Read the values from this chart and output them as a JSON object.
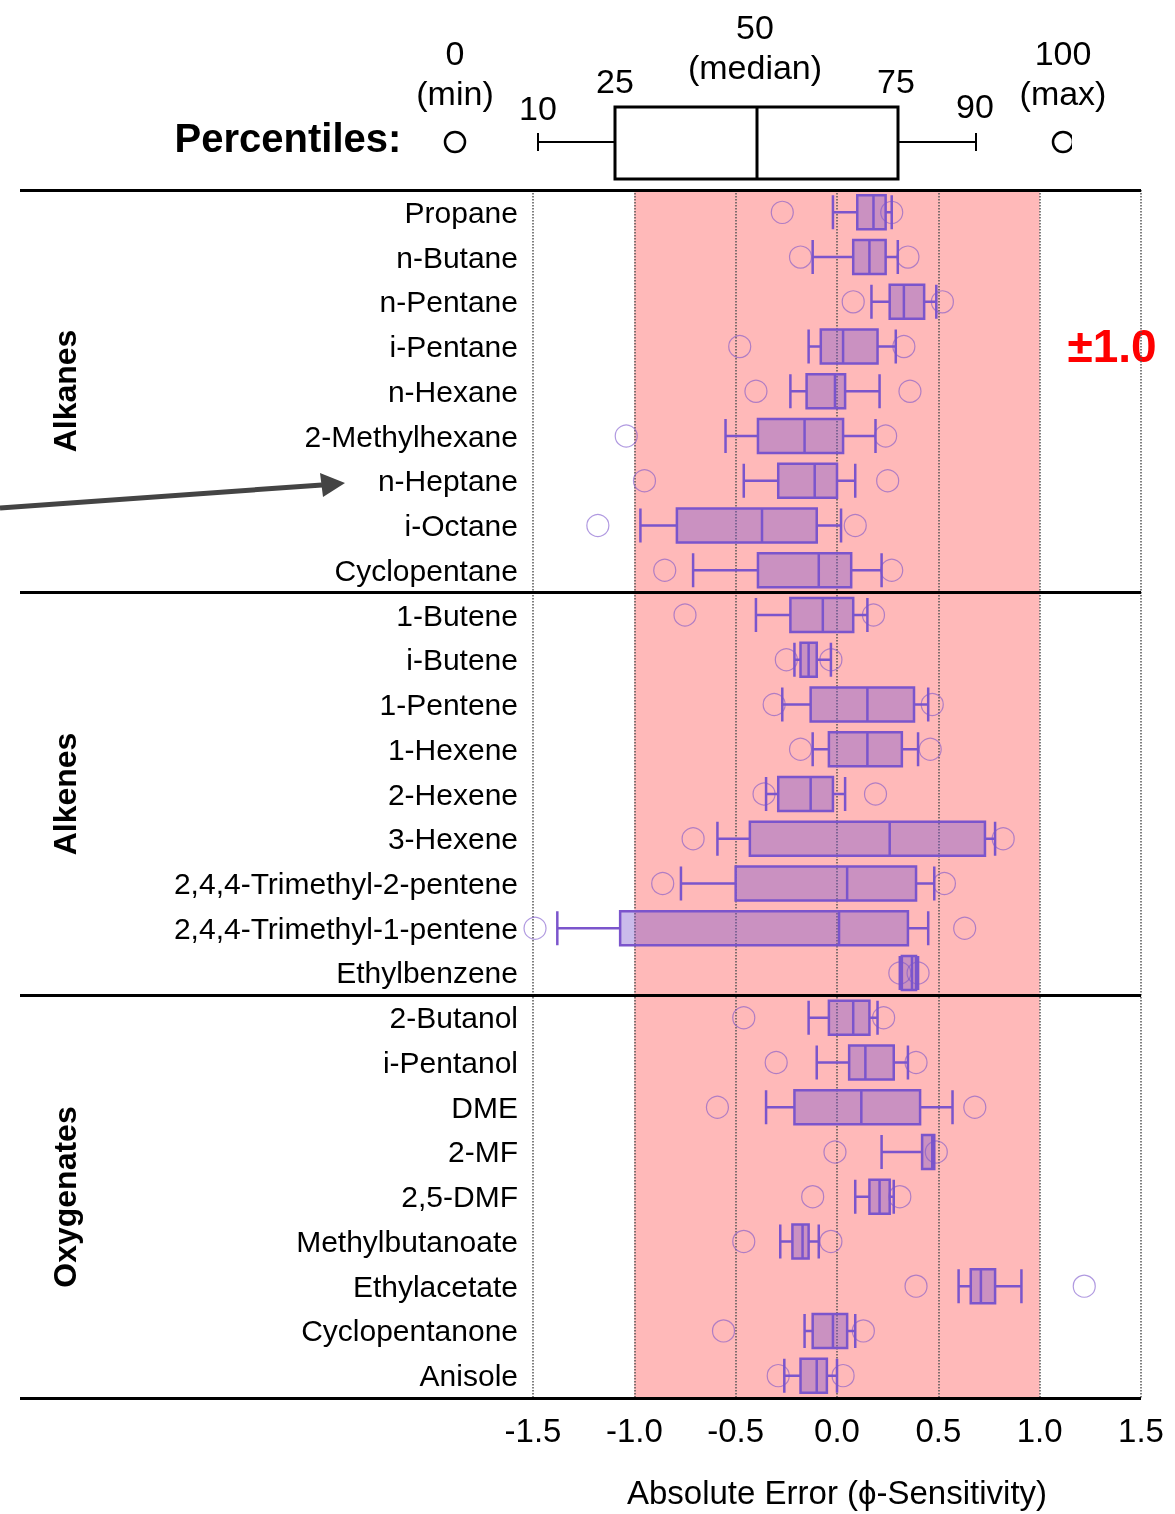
{
  "chart_data": {
    "type": "box",
    "orientation": "horizontal",
    "xlabel": "Absolute Error (ϕ-Sensitivity)",
    "categories": [
      "Propane",
      "n-Butane",
      "n-Pentane",
      "i-Pentane",
      "n-Hexane",
      "2-Methylhexane",
      "n-Heptane",
      "i-Octane",
      "Cyclopentane",
      "1-Butene",
      "i-Butene",
      "1-Pentene",
      "1-Hexene",
      "2-Hexene",
      "3-Hexene",
      "2,4,4-Trimethyl-2-pentene",
      "2,4,4-Trimethyl-1-pentene",
      "Ethylbenzene",
      "2-Butanol",
      "i-Pentanol",
      "DME",
      "2-MF",
      "2,5-DMF",
      "Methylbutanoate",
      "Ethylacetate",
      "Cyclopentanone",
      "Anisole"
    ],
    "series": [
      {
        "color": "#7b55cc",
        "boxes": [
          {
            "low": -0.02,
            "q1": 0.1,
            "median": 0.18,
            "q3": 0.24,
            "high": 0.27,
            "outliers": [
              -0.27,
              0.27
            ]
          },
          {
            "low": -0.12,
            "q1": 0.08,
            "median": 0.16,
            "q3": 0.24,
            "high": 0.3,
            "outliers": [
              -0.18,
              0.35
            ]
          },
          {
            "low": 0.17,
            "q1": 0.26,
            "median": 0.33,
            "q3": 0.43,
            "high": 0.49,
            "outliers": [
              0.08,
              0.52
            ]
          },
          {
            "low": -0.14,
            "q1": -0.08,
            "median": 0.03,
            "q3": 0.2,
            "high": 0.29,
            "outliers": [
              -0.48,
              0.33
            ]
          },
          {
            "low": -0.23,
            "q1": -0.15,
            "median": -0.01,
            "q3": 0.04,
            "high": 0.21,
            "outliers": [
              -0.4,
              0.36
            ]
          },
          {
            "low": -0.55,
            "q1": -0.39,
            "median": -0.16,
            "q3": 0.03,
            "high": 0.19,
            "outliers": [
              -1.04,
              0.24
            ]
          },
          {
            "low": -0.46,
            "q1": -0.29,
            "median": -0.11,
            "q3": 0.0,
            "high": 0.09,
            "outliers": [
              -0.95,
              0.25
            ]
          },
          {
            "low": -0.97,
            "q1": -0.79,
            "median": -0.37,
            "q3": -0.1,
            "high": 0.02,
            "outliers": [
              -1.18,
              0.09
            ]
          },
          {
            "low": -0.71,
            "q1": -0.39,
            "median": -0.09,
            "q3": 0.07,
            "high": 0.22,
            "outliers": [
              -0.85,
              0.27
            ]
          },
          {
            "low": -0.4,
            "q1": -0.23,
            "median": -0.07,
            "q3": 0.08,
            "high": 0.15,
            "outliers": [
              -0.75,
              0.18
            ]
          },
          {
            "low": -0.21,
            "q1": -0.18,
            "median": -0.14,
            "q3": -0.1,
            "high": -0.03,
            "outliers": [
              -0.25,
              -0.03
            ]
          },
          {
            "low": -0.27,
            "q1": -0.13,
            "median": 0.15,
            "q3": 0.38,
            "high": 0.45,
            "outliers": [
              -0.31,
              0.47
            ]
          },
          {
            "low": -0.12,
            "q1": -0.04,
            "median": 0.15,
            "q3": 0.32,
            "high": 0.4,
            "outliers": [
              -0.18,
              0.46
            ]
          },
          {
            "low": -0.35,
            "q1": -0.29,
            "median": -0.13,
            "q3": -0.02,
            "high": 0.04,
            "outliers": [
              -0.36,
              0.19
            ]
          },
          {
            "low": -0.59,
            "q1": -0.43,
            "median": 0.26,
            "q3": 0.73,
            "high": 0.78,
            "outliers": [
              -0.71,
              0.82
            ]
          },
          {
            "low": -0.77,
            "q1": -0.5,
            "median": 0.05,
            "q3": 0.39,
            "high": 0.48,
            "outliers": [
              -0.86,
              0.53
            ]
          },
          {
            "low": -1.38,
            "q1": -1.07,
            "median": 0.01,
            "q3": 0.35,
            "high": 0.45,
            "outliers": [
              -1.49,
              0.63
            ]
          },
          {
            "low": 0.31,
            "q1": 0.32,
            "median": 0.37,
            "q3": 0.39,
            "high": 0.4,
            "outliers": [
              0.31,
              0.4
            ]
          },
          {
            "low": -0.14,
            "q1": -0.04,
            "median": 0.08,
            "q3": 0.16,
            "high": 0.2,
            "outliers": [
              -0.46,
              0.23
            ]
          },
          {
            "low": -0.1,
            "q1": 0.06,
            "median": 0.14,
            "q3": 0.28,
            "high": 0.35,
            "outliers": [
              -0.3,
              0.39
            ]
          },
          {
            "low": -0.35,
            "q1": -0.21,
            "median": 0.12,
            "q3": 0.41,
            "high": 0.57,
            "outliers": [
              -0.59,
              0.68
            ]
          },
          {
            "low": 0.22,
            "q1": 0.42,
            "median": 0.47,
            "q3": 0.48,
            "high": 0.48,
            "outliers": [
              -0.01,
              0.49
            ]
          },
          {
            "low": 0.09,
            "q1": 0.16,
            "median": 0.21,
            "q3": 0.26,
            "high": 0.28,
            "outliers": [
              -0.12,
              0.31
            ]
          },
          {
            "low": -0.28,
            "q1": -0.22,
            "median": -0.17,
            "q3": -0.14,
            "high": -0.09,
            "outliers": [
              -0.46,
              -0.03
            ]
          },
          {
            "low": 0.6,
            "q1": 0.66,
            "median": 0.71,
            "q3": 0.78,
            "high": 0.91,
            "outliers": [
              0.39,
              1.22
            ]
          },
          {
            "low": -0.16,
            "q1": -0.12,
            "median": -0.02,
            "q3": 0.05,
            "high": 0.09,
            "outliers": [
              -0.56,
              0.13
            ]
          },
          {
            "low": -0.26,
            "q1": -0.18,
            "median": -0.1,
            "q3": -0.05,
            "high": 0.0,
            "outliers": [
              -0.29,
              0.03
            ]
          }
        ]
      }
    ],
    "xlim": [
      -1.5,
      1.5
    ],
    "xticks": [
      -1.5,
      {
        "value": -1,
        "label": "-1.0"
      },
      -0.5,
      {
        "value": 0,
        "label": "0.0"
      },
      0.5,
      {
        "value": 1,
        "label": "1.0"
      },
      1.5
    ],
    "bands": [
      {
        "axis": "x",
        "from": -1,
        "to": 1,
        "label": "±1.0",
        "color": "#ffb9b9"
      }
    ],
    "annotations": [
      "Percentiles:",
      "0\n(min)",
      "10",
      "25",
      "50\n(median)",
      "75",
      "90",
      "100\n(max)",
      "Alkanes",
      "Alkenes",
      "Oxygenates"
    ],
    "grid": "x"
  }
}
